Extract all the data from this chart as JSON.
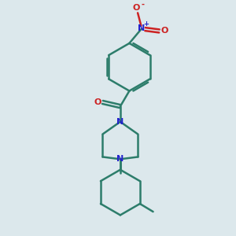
{
  "bg_color": "#dce8ec",
  "bond_color": "#2d7d6b",
  "nitrogen_color": "#2222cc",
  "oxygen_color": "#cc2222",
  "line_width": 1.8,
  "figsize": [
    3.0,
    3.0
  ],
  "dpi": 100,
  "xlim": [
    0,
    10
  ],
  "ylim": [
    0,
    10
  ]
}
